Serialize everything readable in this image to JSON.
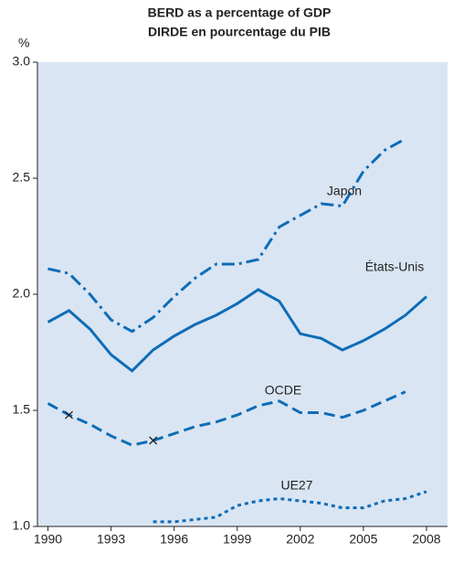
{
  "chart_data": {
    "type": "line",
    "title": "BERD as a percentage of GDP",
    "subtitle": "DIRDE en pourcentage du PIB",
    "y_unit": "%",
    "x": [
      1990,
      1991,
      1992,
      1993,
      1994,
      1995,
      1996,
      1997,
      1998,
      1999,
      2000,
      2001,
      2002,
      2003,
      2004,
      2005,
      2006,
      2007,
      2008
    ],
    "xlim": [
      1989.5,
      2009
    ],
    "xticks": [
      1990,
      1993,
      1996,
      1999,
      2002,
      2005,
      2008
    ],
    "ylim": [
      1,
      3
    ],
    "yticks": [
      {
        "value": 1,
        "label": "1.0"
      },
      {
        "value": 1.5,
        "label": "1.5"
      },
      {
        "value": 2,
        "label": "2.0"
      },
      {
        "value": 2.5,
        "label": "2.5"
      },
      {
        "value": 3,
        "label": "3.0"
      }
    ],
    "series": [
      {
        "name": "Japon",
        "color": "#0f6cb6",
        "dash": "dash-dot",
        "values": [
          2.11,
          2.09,
          2.0,
          1.89,
          1.84,
          1.9,
          1.99,
          2.07,
          2.13,
          2.13,
          2.15,
          2.29,
          2.34,
          2.39,
          2.38,
          2.53,
          2.62,
          2.67,
          null
        ]
      },
      {
        "name": "États-Unis",
        "color": "#0f6cb6",
        "dash": "solid",
        "values": [
          1.88,
          1.93,
          1.85,
          1.74,
          1.67,
          1.76,
          1.82,
          1.87,
          1.91,
          1.96,
          2.02,
          1.97,
          1.83,
          1.81,
          1.76,
          1.8,
          1.85,
          1.91,
          1.99
        ]
      },
      {
        "name": "OCDE",
        "color": "#0f6cb6",
        "dash": "dashed",
        "markers": [
          1,
          5
        ],
        "values": [
          1.53,
          1.48,
          1.44,
          1.39,
          1.35,
          1.37,
          1.4,
          1.43,
          1.45,
          1.48,
          1.52,
          1.54,
          1.49,
          1.49,
          1.47,
          1.5,
          1.54,
          1.58,
          null
        ]
      },
      {
        "name": "UE27",
        "color": "#0f6cb6",
        "dash": "dotted",
        "values": [
          null,
          null,
          null,
          null,
          null,
          1.02,
          1.02,
          1.03,
          1.04,
          1.09,
          1.11,
          1.12,
          1.11,
          1.1,
          1.08,
          1.08,
          1.11,
          1.12,
          1.15
        ]
      }
    ]
  }
}
